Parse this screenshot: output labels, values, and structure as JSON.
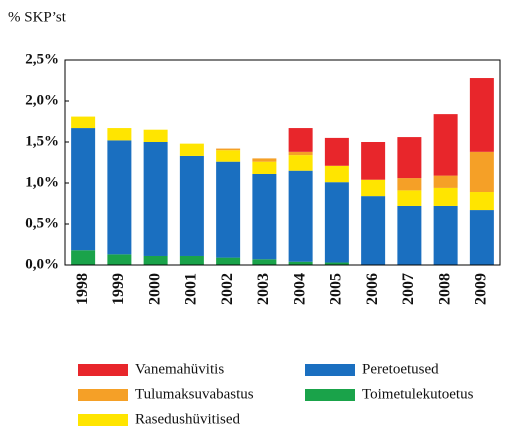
{
  "chart_data": {
    "type": "stacked_bar",
    "y_label": "% SKP’st",
    "categories": [
      "1998",
      "1999",
      "2000",
      "2001",
      "2002",
      "2003",
      "2004",
      "2005",
      "2006",
      "2007",
      "2008",
      "2009"
    ],
    "series": [
      {
        "name": "Toimetulekutoetus",
        "color": "#1aa34a",
        "values": [
          0.18,
          0.13,
          0.11,
          0.11,
          0.09,
          0.07,
          0.04,
          0.03,
          0,
          0,
          0,
          0
        ]
      },
      {
        "name": "Peretoetused",
        "color": "#1a6fc0",
        "values": [
          1.49,
          1.39,
          1.39,
          1.22,
          1.17,
          1.04,
          1.11,
          0.98,
          0.84,
          0.72,
          0.72,
          0.67
        ]
      },
      {
        "name": "Rasedushüvitised",
        "color": "#ffe500",
        "values": [
          0.14,
          0.15,
          0.15,
          0.15,
          0.14,
          0.15,
          0.19,
          0.2,
          0.2,
          0.19,
          0.22,
          0.22
        ]
      },
      {
        "name": "Tulumaksuvabastus",
        "color": "#f5a027",
        "values": [
          0,
          0,
          0,
          0,
          0.02,
          0.04,
          0.04,
          0,
          0,
          0.15,
          0.15,
          0.49
        ]
      },
      {
        "name": "Vanemahüvitis",
        "color": "#e8262b",
        "values": [
          0,
          0,
          0,
          0,
          0,
          0,
          0.29,
          0.34,
          0.46,
          0.5,
          0.75,
          0.9
        ]
      }
    ],
    "ylim": [
      0,
      2.5
    ],
    "yticks": [
      {
        "value": 0,
        "label": "0,0%"
      },
      {
        "value": 0.5,
        "label": "0,5%"
      },
      {
        "value": 1,
        "label": "1,0%"
      },
      {
        "value": 1.5,
        "label": "1,5%"
      },
      {
        "value": 2,
        "label": "2,0%"
      },
      {
        "value": 2.5,
        "label": "2,5%"
      }
    ],
    "grid": false
  }
}
